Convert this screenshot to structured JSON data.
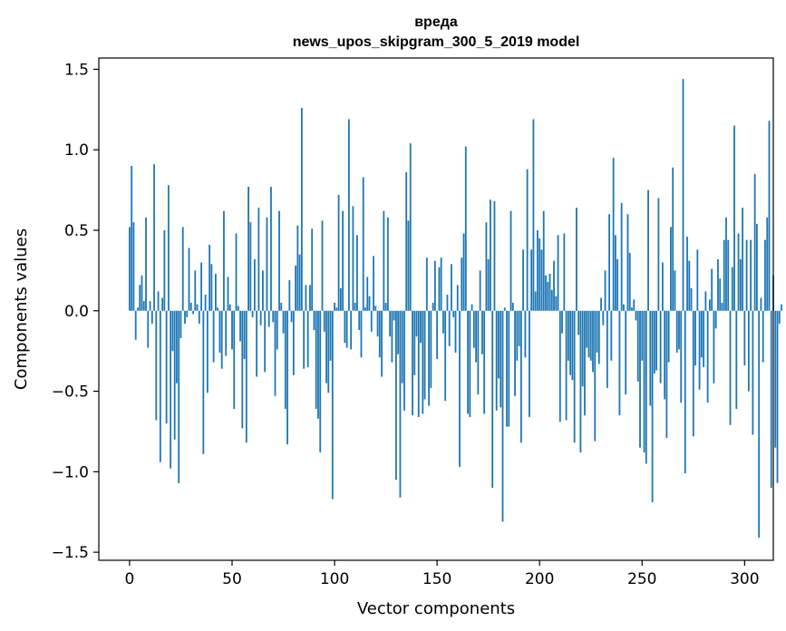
{
  "chart_data": {
    "type": "bar",
    "title_line1": "вреда",
    "title_line2": "news_upos_skipgram_300_5_2019 model",
    "xlabel": "Vector components",
    "ylabel": "Components values",
    "xlim": [
      -15,
      314
    ],
    "ylim": [
      -1.55,
      1.57
    ],
    "xticks": [
      0,
      50,
      100,
      150,
      200,
      250,
      300
    ],
    "yticks": [
      -1.5,
      -1.0,
      -0.5,
      0.0,
      0.5,
      1.0,
      1.5
    ],
    "ytick_labels": [
      "−1.5",
      "−1.0",
      "−0.5",
      "0.0",
      "0.5",
      "1.0",
      "1.5"
    ],
    "color": "#1f77b4",
    "values": [
      0.52,
      0.9,
      0.55,
      -0.18,
      0.02,
      0.16,
      0.22,
      0.06,
      0.58,
      -0.23,
      0.06,
      -0.08,
      0.91,
      -0.68,
      0.12,
      -0.94,
      0.08,
      0.5,
      -0.7,
      0.78,
      -0.98,
      -0.25,
      -0.8,
      -0.45,
      -1.07,
      -0.17,
      0.52,
      -0.08,
      -0.04,
      0.39,
      0.05,
      -0.02,
      0.25,
      0.04,
      -0.08,
      0.3,
      -0.89,
      0.1,
      -0.51,
      0.41,
      0.29,
      -0.32,
      0.23,
      0.02,
      -0.26,
      -0.36,
      0.62,
      -0.28,
      0.21,
      0.04,
      -0.24,
      -0.61,
      0.48,
      0.03,
      -0.19,
      -0.73,
      -0.3,
      -0.82,
      0.77,
      0.55,
      -0.04,
      0.32,
      -0.41,
      0.64,
      -0.09,
      0.25,
      -0.38,
      0.58,
      -0.1,
      0.77,
      -0.07,
      -0.53,
      -0.24,
      0.62,
      0.05,
      -0.14,
      -0.61,
      -0.83,
      0.19,
      -0.07,
      -0.4,
      0.28,
      0.53,
      0.35,
      1.26,
      -0.36,
      0.16,
      -0.35,
      0.16,
      0.51,
      -0.12,
      -0.61,
      -0.67,
      -0.88,
      0.56,
      -0.13,
      -0.45,
      -0.51,
      -0.31,
      -1.17,
      0.05,
      0.02,
      0.72,
      0.14,
      0.62,
      -0.2,
      -0.23,
      1.19,
      -0.24,
      0.65,
      0.05,
      0.47,
      -0.12,
      -0.29,
      0.83,
      0.02,
      0.21,
      0.09,
      -0.13,
      0.34,
      0.03,
      -0.16,
      -0.29,
      -0.41,
      0.62,
      0.05,
      0.58,
      -0.16,
      -0.32,
      -0.06,
      -1.05,
      -0.27,
      -1.16,
      -0.45,
      -0.62,
      0.86,
      0.56,
      1.04,
      -0.65,
      -0.4,
      -0.16,
      -0.66,
      -0.2,
      -0.64,
      -0.55,
      0.33,
      -0.59,
      -0.48,
      0.05,
      0.31,
      -0.3,
      0.27,
      0.33,
      -0.14,
      -0.56,
      0.1,
      -0.22,
      0.29,
      -0.04,
      -0.26,
      0.16,
      -0.97,
      0.33,
      0.48,
      1.02,
      -0.64,
      -0.66,
      0.04,
      -0.23,
      -0.32,
      -0.52,
      0.25,
      -0.27,
      -0.64,
      0.55,
      0.32,
      0.69,
      -1.1,
      0.68,
      -0.62,
      -0.42,
      -0.6,
      -1.31,
      0.02,
      -0.72,
      -0.72,
      0.62,
      0.05,
      -0.53,
      -0.31,
      -0.22,
      -0.82,
      0.38,
      -0.29,
      0.88,
      -0.66,
      0.38,
      1.19,
      0.12,
      0.5,
      0.45,
      0.38,
      0.62,
      0.22,
      0.18,
      0.23,
      0.13,
      0.31,
      0.09,
      0.47,
      -0.69,
      -0.14,
      0.48,
      -0.68,
      -0.31,
      -0.4,
      -0.43,
      -0.82,
      0.64,
      -0.15,
      -0.88,
      -0.47,
      -0.65,
      -0.23,
      -0.29,
      -0.31,
      -0.38,
      -0.81,
      -0.26,
      -0.33,
      0.08,
      -0.09,
      0.25,
      -0.48,
      0.6,
      -0.31,
      0.95,
      0.47,
      0.32,
      -0.65,
      0.67,
      0.04,
      -0.52,
      0.6,
      0.36,
      0.02,
      0.07,
      -0.06,
      -0.44,
      -0.85,
      -0.31,
      -0.88,
      -0.95,
      0.75,
      -0.59,
      -1.19,
      -0.39,
      -0.37,
      0.7,
      -0.45,
      0.3,
      -0.55,
      -0.79,
      -0.32,
      0.52,
      0.89,
      0.25,
      -0.26,
      -0.24,
      -0.57,
      1.44,
      -1.01,
      0.46,
      0.31,
      0.14,
      -0.78,
      -0.34,
      0.38,
      -0.49,
      -0.29,
      -0.35,
      0.12,
      -0.57,
      0.07,
      0.26,
      -0.45,
      -0.11,
      0.32,
      0.2,
      0.05,
      0.44,
      0.58,
      0.44,
      -0.71,
      0.27,
      1.15,
      -0.61,
      0.48,
      0.32,
      0.64,
      -0.34,
      0.44,
      -0.5,
      0.44,
      -0.77,
      0.85,
      0.54,
      -1.41,
      0.08,
      -0.32,
      0.44,
      0.58,
      1.18,
      -1.1,
      0.22,
      -0.85,
      -1.07,
      -0.08,
      0.04
    ]
  }
}
